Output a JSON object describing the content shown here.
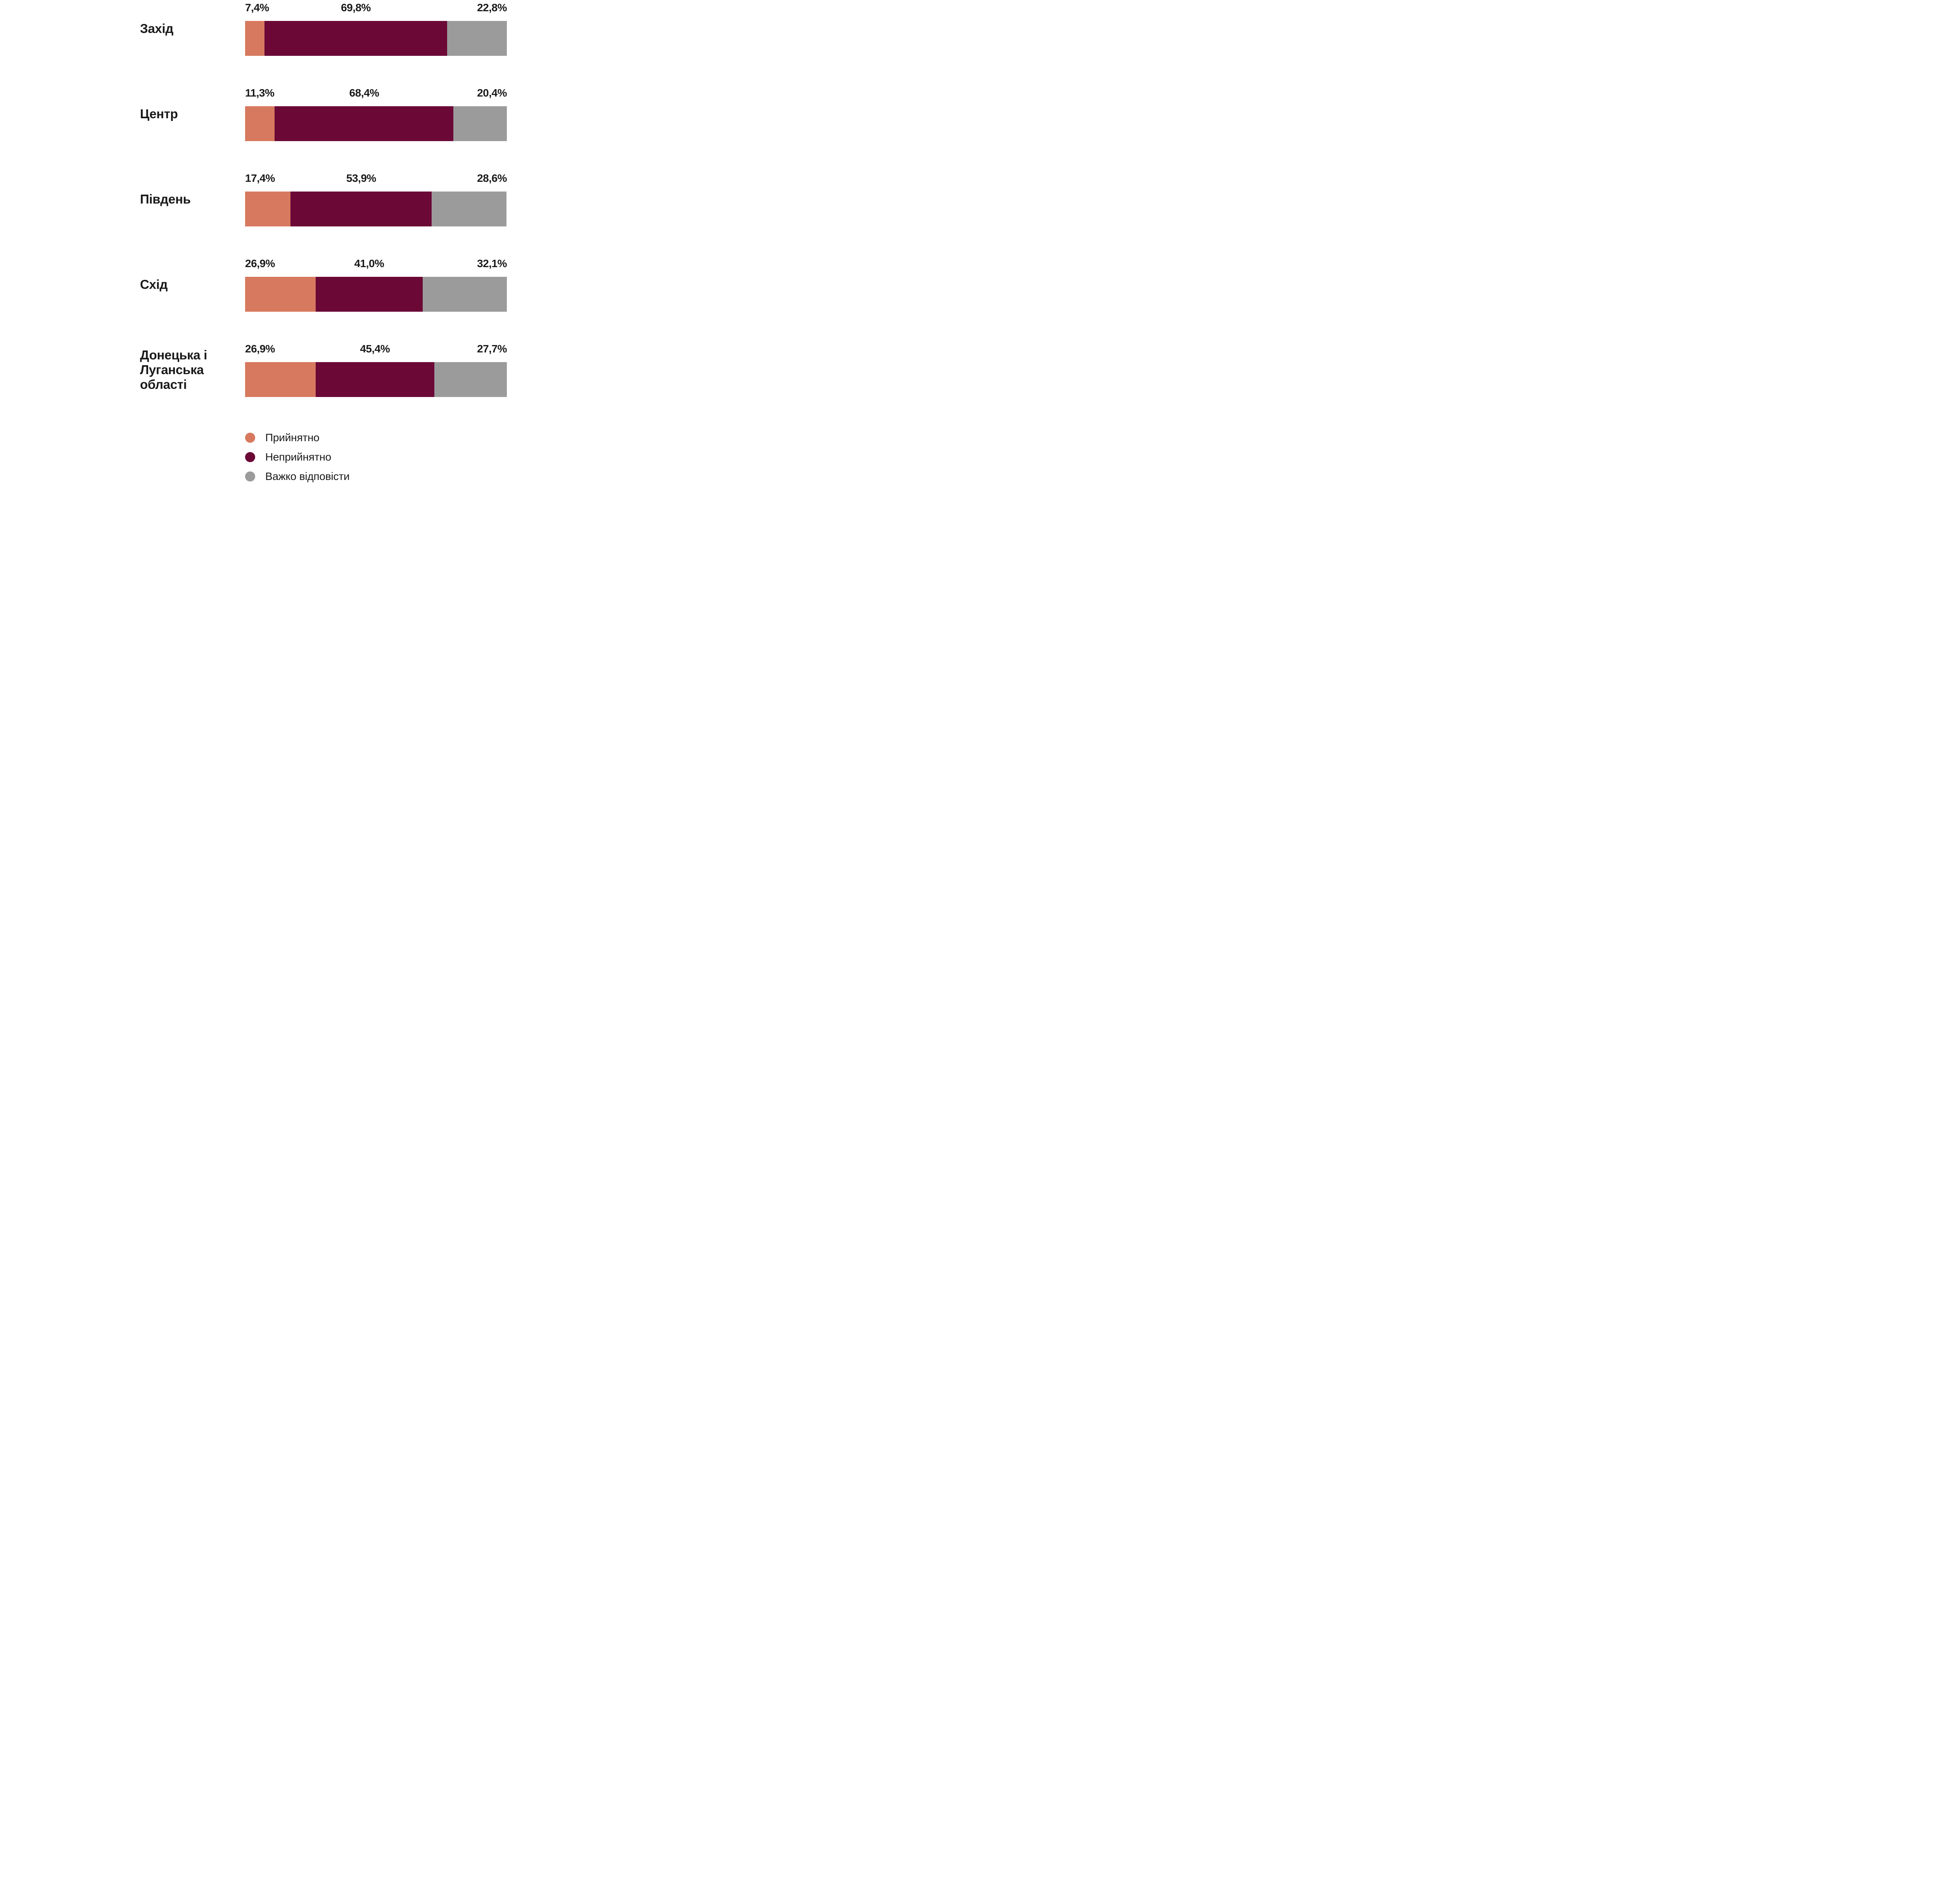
{
  "chart_data": {
    "type": "bar",
    "orientation": "horizontal-stacked",
    "title": "",
    "xlabel": "",
    "ylabel": "",
    "xlim": [
      0,
      100
    ],
    "grid": false,
    "legend_position": "bottom-left",
    "categories": [
      "Захід",
      "Центр",
      "Південь",
      "Схід",
      "Донецька і Луганська області"
    ],
    "series": [
      {
        "name": "Прийнятно",
        "color": "#D7795E",
        "values": [
          7.4,
          11.3,
          17.4,
          26.9,
          26.9
        ]
      },
      {
        "name": "Неприйнятно",
        "color": "#6B0836",
        "values": [
          69.8,
          68.4,
          53.9,
          41.0,
          45.4
        ]
      },
      {
        "name": "Важко відповісти",
        "color": "#9B9B9B",
        "values": [
          22.8,
          20.4,
          28.6,
          32.1,
          27.7
        ]
      }
    ],
    "value_labels": [
      [
        "7,4%",
        "69,8%",
        "22,8%"
      ],
      [
        "11,3%",
        "68,4%",
        "20,4%"
      ],
      [
        "17,4%",
        "53,9%",
        "28,6%"
      ],
      [
        "26,9%",
        "41,0%",
        "32,1%"
      ],
      [
        "26,9%",
        "45,4%",
        "27,7%"
      ]
    ]
  },
  "legend": {
    "items": [
      {
        "label": "Прийнятно",
        "color": "#D7795E"
      },
      {
        "label": "Неприйнятно",
        "color": "#6B0836"
      },
      {
        "label": "Важко відповісти",
        "color": "#9B9B9B"
      }
    ]
  },
  "colors": {
    "text": "#1A1A1A",
    "background": "#FFFFFF"
  }
}
